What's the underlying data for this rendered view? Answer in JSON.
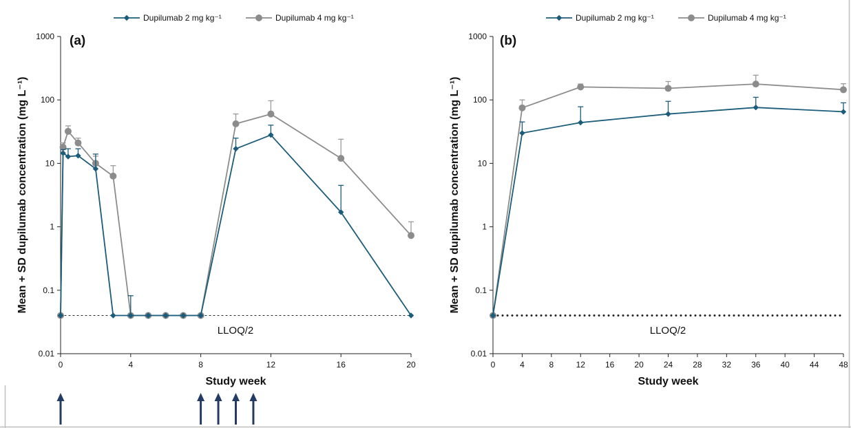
{
  "colors": {
    "series_2mg": "#1b5c7a",
    "series_4mg": "#8c8c8c",
    "error_bar_4mg": "#9a9a9a",
    "dosing_arrow": "#243b66",
    "axis": "#222222",
    "reference_line": "#222222",
    "frame": "#bfbfbf"
  },
  "icons": {
    "dosing_marker": "up-arrow-icon"
  },
  "chart_data": [
    {
      "type": "line",
      "panel_label": "(a)",
      "xlabel": "Study week",
      "ylabel": "Mean + SD dupilumab concentration (mg L⁻¹)",
      "xlim": [
        0,
        20
      ],
      "xticks": [
        0,
        4,
        8,
        12,
        16,
        20
      ],
      "ylim": [
        0.01,
        1000
      ],
      "yscale": "log",
      "yticks": [
        0.01,
        0.1,
        1,
        10,
        100,
        1000
      ],
      "ytick_labels": [
        "0.01",
        "0.1",
        "1",
        "10",
        "100",
        "1000"
      ],
      "legend": {
        "position": "top",
        "entries": [
          "Dupilumab 2 mg kg⁻¹",
          "Dupilumab 4 mg kg⁻¹"
        ]
      },
      "reference_line": {
        "y": 0.04,
        "label": "LLOQ/2",
        "style": "thin-dotted"
      },
      "dosing_weeks": [
        0,
        8,
        9,
        10,
        11
      ],
      "series": [
        {
          "name": "Dupilumab 2 mg kg⁻¹",
          "marker": "diamond",
          "x": [
            0,
            0.14,
            0.43,
            1,
            2,
            3,
            4,
            5,
            6,
            7,
            8,
            10,
            12,
            16,
            20
          ],
          "y": [
            0.04,
            14.5,
            12.8,
            13.2,
            8.2,
            0.04,
            0.04,
            0.04,
            0.04,
            0.04,
            0.04,
            17,
            28,
            1.7,
            0.04
          ],
          "sd_upper": [
            null,
            16.5,
            17,
            17,
            14,
            null,
            0.082,
            null,
            null,
            null,
            null,
            25,
            40,
            4.5,
            null
          ]
        },
        {
          "name": "Dupilumab 4 mg kg⁻¹",
          "marker": "circle",
          "x": [
            0,
            0.14,
            0.43,
            1,
            2,
            3,
            4,
            5,
            6,
            7,
            8,
            10,
            12,
            16,
            20
          ],
          "y": [
            0.04,
            18,
            32,
            21,
            10,
            6.3,
            0.04,
            0.04,
            0.04,
            0.04,
            0.04,
            42,
            60,
            12,
            0.73
          ],
          "sd_upper": [
            null,
            21,
            39,
            25,
            13,
            9.2,
            null,
            null,
            null,
            null,
            null,
            60,
            97,
            24,
            1.2
          ]
        }
      ]
    },
    {
      "type": "line",
      "panel_label": "(b)",
      "xlabel": "Study week",
      "ylabel": "Mean + SD dupilumab concentration (mg L⁻¹)",
      "xlim": [
        0,
        48
      ],
      "xticks": [
        0,
        4,
        8,
        12,
        16,
        20,
        24,
        28,
        32,
        36,
        40,
        44,
        48
      ],
      "ylim": [
        0.01,
        1000
      ],
      "yscale": "log",
      "yticks": [
        0.01,
        0.1,
        1,
        10,
        100,
        1000
      ],
      "ytick_labels": [
        "0.01",
        "0.1",
        "1",
        "10",
        "100",
        "1000"
      ],
      "legend": {
        "position": "top",
        "entries": [
          "Dupilumab 2 mg kg⁻¹",
          "Dupilumab 4 mg kg⁻¹"
        ]
      },
      "reference_line": {
        "y": 0.04,
        "label": "LLOQ/2",
        "style": "thick-dotted"
      },
      "series": [
        {
          "name": "Dupilumab 2 mg kg⁻¹",
          "marker": "diamond",
          "x": [
            0,
            4,
            12,
            24,
            36,
            48
          ],
          "y": [
            0.04,
            30,
            44,
            60,
            76,
            65
          ],
          "sd_upper": [
            null,
            45,
            78,
            95,
            110,
            90
          ]
        },
        {
          "name": "Dupilumab 4 mg kg⁻¹",
          "marker": "circle",
          "x": [
            0,
            4,
            12,
            24,
            36,
            48
          ],
          "y": [
            0.04,
            75,
            160,
            152,
            178,
            145
          ],
          "sd_upper": [
            null,
            100,
            178,
            195,
            245,
            180
          ]
        }
      ]
    }
  ]
}
